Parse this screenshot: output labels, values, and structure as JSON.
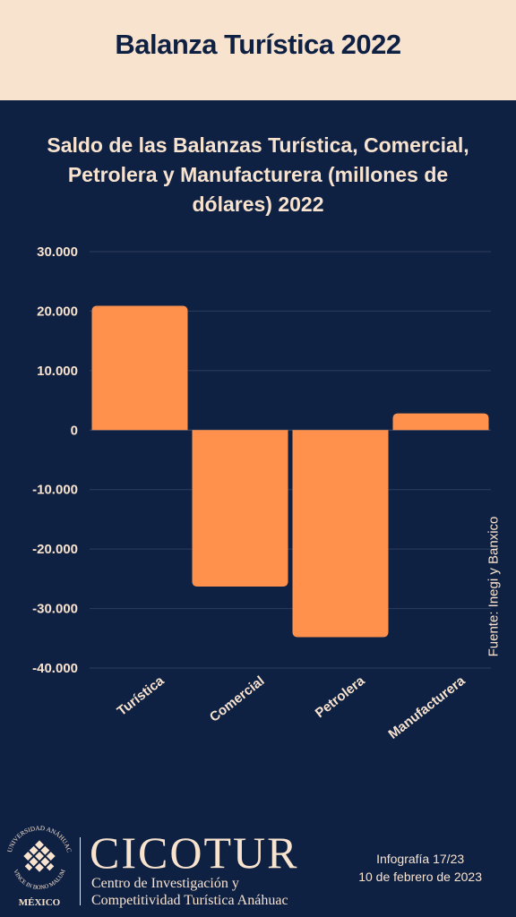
{
  "header": {
    "title": "Balanza Turística 2022"
  },
  "chart_data": {
    "type": "bar",
    "title": "Saldo de las Balanzas Turística, Comercial, Petrolera y Manufacturera (millones de dólares) 2022",
    "categories": [
      "Turística",
      "Comercial",
      "Petrolera",
      "Manufacturera"
    ],
    "values": [
      20900,
      -26300,
      -34800,
      2800
    ],
    "yticks": [
      "30.000",
      "20.000",
      "10.000",
      "0",
      "-10.000",
      "-20.000",
      "-30.000",
      "-40.000"
    ],
    "ylim": [
      -40000,
      30000
    ],
    "grid": true,
    "bar_color": "#ff914d"
  },
  "source": "Fuente: Inegi y Banxico",
  "footer": {
    "brand": "CICOTUR",
    "brand_line1": "Centro de Investigación y",
    "brand_line2": "Competitividad Turística Anáhuac",
    "seal_text_top": "UNIVERSIDAD ANÁHUAC",
    "seal_text_bottom": "VINCE IN BONO MALUM",
    "seal_caption": "MÉXICO",
    "infographic": "Infografía 17/23",
    "date": "10 de febrero de 2023"
  },
  "colors": {
    "background": "#0f2143",
    "header": "#f8e3cf",
    "text": "#f8e3cf",
    "bar": "#ff914d"
  }
}
